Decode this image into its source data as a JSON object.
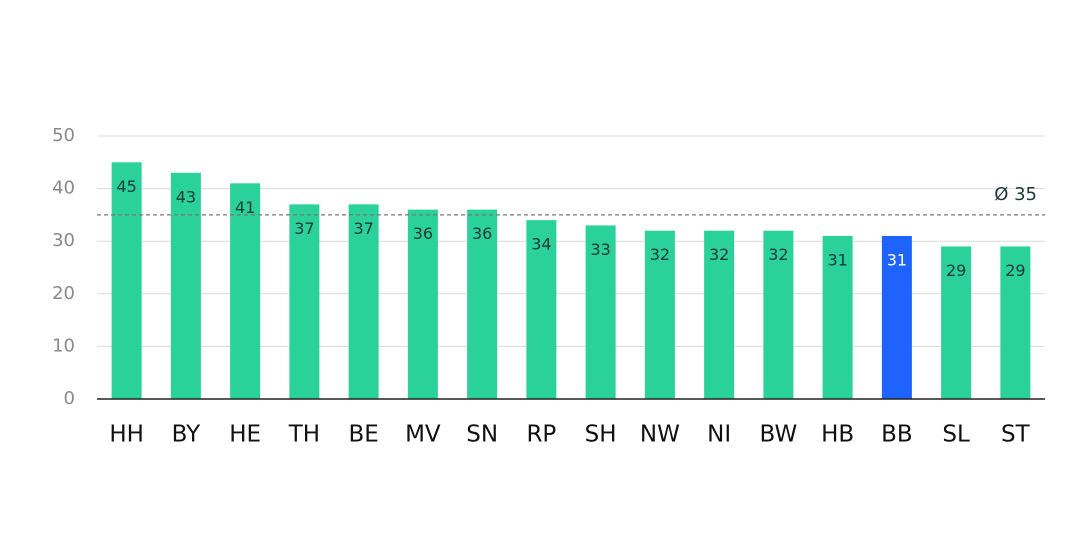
{
  "chart_data": {
    "type": "bar",
    "categories": [
      "HH",
      "BY",
      "HE",
      "TH",
      "BE",
      "MV",
      "SN",
      "RP",
      "SH",
      "NW",
      "NI",
      "BW",
      "HB",
      "BB",
      "SL",
      "ST"
    ],
    "values": [
      45,
      43,
      41,
      37,
      37,
      36,
      36,
      34,
      33,
      32,
      32,
      32,
      31,
      31,
      29,
      29
    ],
    "colors": [
      "#2ad198",
      "#2ad198",
      "#2ad198",
      "#2ad198",
      "#2ad198",
      "#2ad198",
      "#2ad198",
      "#2ad198",
      "#2ad198",
      "#2ad198",
      "#2ad198",
      "#2ad198",
      "#2ad198",
      "#1f63ff",
      "#2ad198",
      "#2ad198"
    ],
    "average": {
      "value": 35,
      "label": "Ø 35"
    },
    "ylim": [
      0,
      50
    ],
    "yticks": [
      0,
      10,
      20,
      30,
      40,
      50
    ],
    "grid": true
  }
}
